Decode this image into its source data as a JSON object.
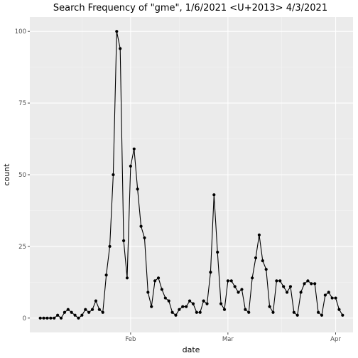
{
  "chart_data": {
    "type": "line",
    "title": "Search Frequency of \"gme\", 1/6/2021 <U+2013> 4/3/2021",
    "xlabel": "date",
    "ylabel": "count",
    "x_start": "2021-01-06",
    "x_ticks": [
      {
        "date": "2021-02-01",
        "label": "Feb"
      },
      {
        "date": "2021-03-01",
        "label": "Mar"
      },
      {
        "date": "2021-04-01",
        "label": "Apr"
      }
    ],
    "y_ticks": [
      0,
      25,
      50,
      75,
      100
    ],
    "xlim": [
      "2021-01-03",
      "2021-04-06"
    ],
    "ylim": [
      -5,
      105
    ],
    "grid": true,
    "series": [
      {
        "x": [
          "2021-01-06",
          "2021-01-07",
          "2021-01-08",
          "2021-01-09",
          "2021-01-10",
          "2021-01-11",
          "2021-01-12",
          "2021-01-13",
          "2021-01-14",
          "2021-01-15",
          "2021-01-16",
          "2021-01-17",
          "2021-01-18",
          "2021-01-19",
          "2021-01-20",
          "2021-01-21",
          "2021-01-22",
          "2021-01-23",
          "2021-01-24",
          "2021-01-25",
          "2021-01-26",
          "2021-01-27",
          "2021-01-28",
          "2021-01-29",
          "2021-01-30",
          "2021-01-31",
          "2021-02-01",
          "2021-02-02",
          "2021-02-03",
          "2021-02-04",
          "2021-02-05",
          "2021-02-06",
          "2021-02-07",
          "2021-02-08",
          "2021-02-09",
          "2021-02-10",
          "2021-02-11",
          "2021-02-12",
          "2021-02-13",
          "2021-02-14",
          "2021-02-15",
          "2021-02-16",
          "2021-02-17",
          "2021-02-18",
          "2021-02-19",
          "2021-02-20",
          "2021-02-21",
          "2021-02-22",
          "2021-02-23",
          "2021-02-24",
          "2021-02-25",
          "2021-02-26",
          "2021-02-27",
          "2021-02-28",
          "2021-03-01",
          "2021-03-02",
          "2021-03-03",
          "2021-03-04",
          "2021-03-05",
          "2021-03-06",
          "2021-03-07",
          "2021-03-08",
          "2021-03-09",
          "2021-03-10",
          "2021-03-11",
          "2021-03-12",
          "2021-03-13",
          "2021-03-14",
          "2021-03-15",
          "2021-03-16",
          "2021-03-17",
          "2021-03-18",
          "2021-03-19",
          "2021-03-20",
          "2021-03-21",
          "2021-03-22",
          "2021-03-23",
          "2021-03-24",
          "2021-03-25",
          "2021-03-26",
          "2021-03-27",
          "2021-03-28",
          "2021-03-29",
          "2021-03-30",
          "2021-03-31",
          "2021-04-01",
          "2021-04-02",
          "2021-04-03"
        ],
        "y": [
          0,
          0,
          0,
          0,
          0,
          1,
          0,
          2,
          3,
          2,
          1,
          0,
          1,
          3,
          2,
          3,
          6,
          3,
          2,
          15,
          25,
          50,
          100,
          94,
          27,
          14,
          53,
          59,
          45,
          32,
          28,
          9,
          4,
          13,
          14,
          10,
          7,
          6,
          2,
          1,
          3,
          4,
          4,
          6,
          5,
          2,
          2,
          6,
          5,
          16,
          43,
          23,
          5,
          3,
          13,
          13,
          11,
          9,
          10,
          3,
          2,
          14,
          21,
          29,
          20,
          17,
          4,
          2,
          13,
          13,
          11,
          9,
          11,
          2,
          1,
          9,
          12,
          13,
          12,
          12,
          2,
          1,
          8,
          9,
          7,
          7,
          3,
          1
        ]
      }
    ]
  }
}
